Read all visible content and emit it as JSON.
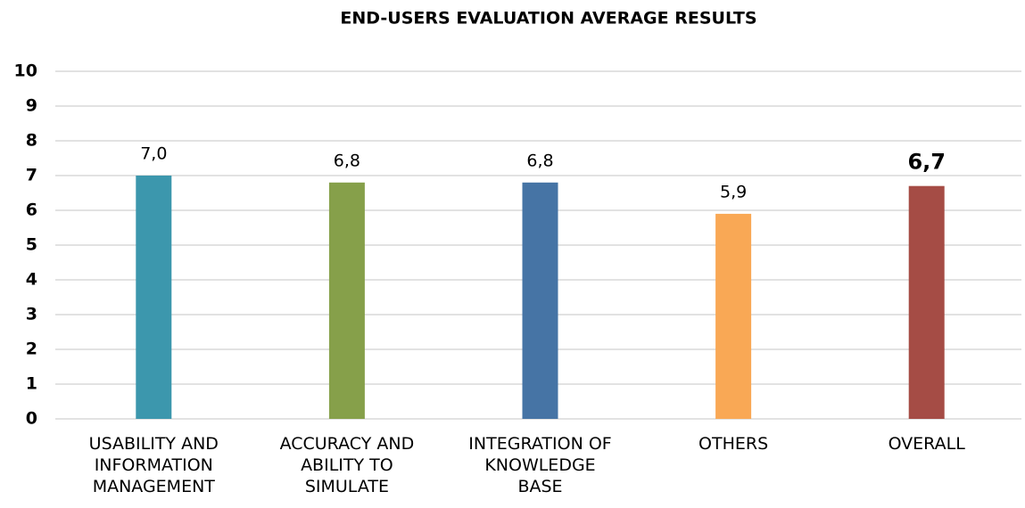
{
  "chart_data": {
    "type": "bar",
    "title": "END-USERS EVALUATION AVERAGE RESULTS",
    "categories": [
      "USABILITY AND\nINFORMATION\nMANAGEMENT",
      "ACCURACY AND\nABILITY TO\nSIMULATE",
      "INTEGRATION OF\nKNOWLEDGE\nBASE",
      "OTHERS",
      "OVERALL"
    ],
    "values": [
      7.0,
      6.8,
      6.8,
      5.9,
      6.7
    ],
    "value_labels": [
      "7,0",
      "6,8",
      "6,8",
      "5,9",
      "6,7"
    ],
    "value_label_bold": [
      false,
      false,
      false,
      false,
      true
    ],
    "colors": [
      "#3c97ad",
      "#86a04a",
      "#4674a5",
      "#f9a855",
      "#a54c45"
    ],
    "ylim": [
      0,
      10
    ],
    "yticks": [
      0,
      1,
      2,
      3,
      4,
      5,
      6,
      7,
      8,
      9,
      10
    ],
    "grid": true
  }
}
